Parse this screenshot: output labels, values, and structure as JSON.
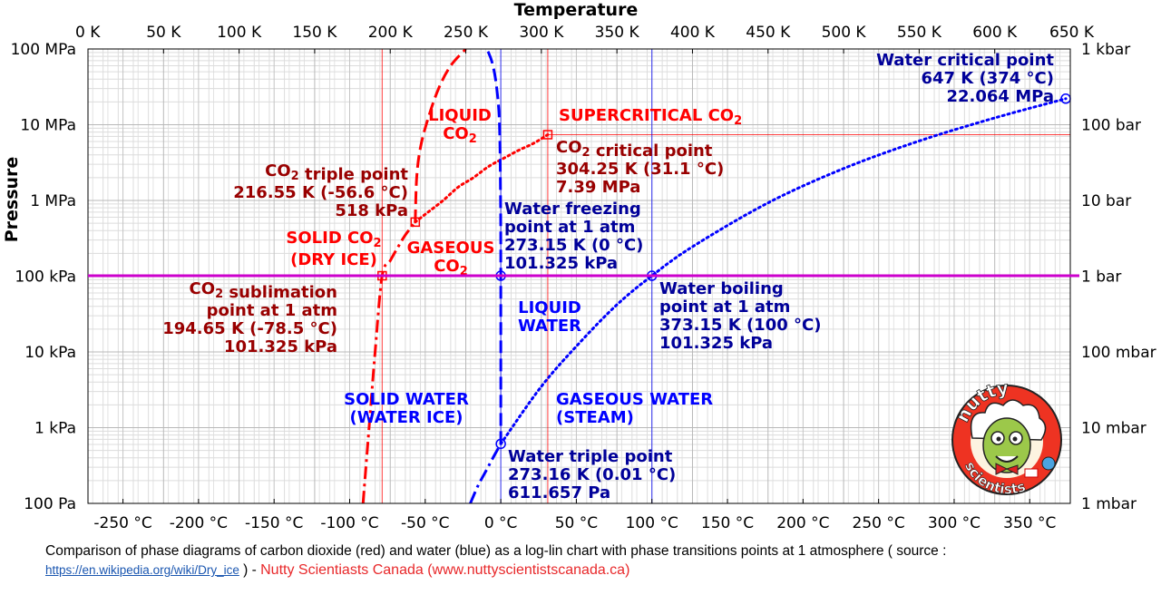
{
  "chart_data": {
    "type": "line",
    "title": "Temperature",
    "xlabel": "Temperature",
    "ylabel": "Pressure",
    "x_scale": "linear",
    "y_scale": "log",
    "xlim_kelvin": [
      0,
      650
    ],
    "xlim_celsius": [
      -273.15,
      376.85
    ],
    "ylim_pa": [
      100,
      100000000
    ],
    "grid": true,
    "top_ticks": [
      "0 K",
      "50 K",
      "100 K",
      "150 K",
      "200 K",
      "250 K",
      "300 K",
      "350 K",
      "400 K",
      "450 K",
      "500 K",
      "550 K",
      "600 K",
      "650 K"
    ],
    "top_tick_values": [
      0,
      50,
      100,
      150,
      200,
      250,
      300,
      350,
      400,
      450,
      500,
      550,
      600,
      650
    ],
    "bottom_ticks": [
      "-250 °C",
      "-200 °C",
      "-150 °C",
      "-100 °C",
      "-50 °C",
      "0 °C",
      "50 °C",
      "100 °C",
      "150 °C",
      "200 °C",
      "250 °C",
      "300 °C",
      "350 °C"
    ],
    "bottom_tick_values": [
      -250,
      -200,
      -150,
      -100,
      -50,
      0,
      50,
      100,
      150,
      200,
      250,
      300,
      350
    ],
    "left_ticks": [
      "100 MPa",
      "10 MPa",
      "1 MPa",
      "100 kPa",
      "10 kPa",
      "1 kPa",
      "100 Pa"
    ],
    "left_tick_values": [
      100000000,
      10000000,
      1000000,
      100000,
      10000,
      1000,
      100
    ],
    "right_ticks": [
      "1 kbar",
      "100 bar",
      "10 bar",
      "1 bar",
      "100 mbar",
      "10 mbar",
      "1 mbar"
    ],
    "one_atm_pa": 101325,
    "series": [
      {
        "role": "co2-sublimation",
        "color": "#ff0000",
        "dash": "dashdot",
        "x": [
          182,
          186,
          190,
          194.65,
          200,
          205,
          210,
          216.55
        ],
        "y": [
          100,
          1000,
          10000,
          101325,
          160000,
          240000,
          350000,
          518000
        ]
      },
      {
        "role": "co2-melting",
        "color": "#ff0000",
        "dash": "dashed",
        "x": [
          216.55,
          217.5,
          220,
          225,
          232,
          240,
          250
        ],
        "y": [
          518000,
          2000000,
          5000000,
          12000000,
          30000000,
          60000000,
          100000000
        ]
      },
      {
        "role": "co2-boiling",
        "color": "#ff0000",
        "dash": "dotted",
        "x": [
          216.55,
          225,
          235,
          245,
          255,
          265,
          275,
          285,
          295,
          304.25
        ],
        "y": [
          518000,
          700000,
          1000000,
          1500000,
          2000000,
          2800000,
          3600000,
          4600000,
          5700000,
          7390000
        ]
      },
      {
        "role": "water-sublimation",
        "color": "#0000ff",
        "dash": "dashdot",
        "x": [
          253,
          258,
          263,
          268,
          273.16
        ],
        "y": [
          100,
          170,
          260,
          400,
          611.657
        ]
      },
      {
        "role": "water-melting",
        "color": "#0000ff",
        "dash": "dashed",
        "x": [
          273.16,
          273.15,
          273.0,
          272.3,
          270.5,
          268,
          265,
          263
        ],
        "y": [
          611.657,
          101325,
          1000000,
          10000000,
          30000000,
          60000000,
          90000000,
          100000000
        ]
      },
      {
        "role": "water-boiling",
        "color": "#0000ff",
        "dash": "dotted",
        "x": [
          273.16,
          300,
          325,
          350,
          373.15,
          400,
          450,
          500,
          550,
          600,
          647
        ],
        "y": [
          611.657,
          3500,
          13000,
          42000,
          101325,
          245000,
          930000,
          2640000,
          6100000,
          12300000,
          22064000
        ]
      }
    ],
    "points": [
      {
        "role": "co2-triple",
        "color": "#ff0000",
        "marker": "square",
        "x": 216.55,
        "y": 518000
      },
      {
        "role": "co2-critical",
        "color": "#ff0000",
        "marker": "square",
        "x": 304.25,
        "y": 7390000
      },
      {
        "role": "co2-sublimation-1atm",
        "color": "#ff0000",
        "marker": "square",
        "x": 194.65,
        "y": 101325
      },
      {
        "role": "water-triple",
        "color": "#0000ff",
        "marker": "circle",
        "x": 273.16,
        "y": 611.657
      },
      {
        "role": "water-freezing-1atm",
        "color": "#0000ff",
        "marker": "circle",
        "x": 273.15,
        "y": 101325
      },
      {
        "role": "water-boiling-1atm",
        "color": "#0000ff",
        "marker": "circle",
        "x": 373.15,
        "y": 101325
      },
      {
        "role": "water-critical",
        "color": "#0000ff",
        "marker": "circle",
        "x": 647,
        "y": 22064000
      }
    ],
    "guide_lines": [
      {
        "color": "#ff0000",
        "orientation": "vertical",
        "x": 194.65
      },
      {
        "color": "#ff0000",
        "orientation": "vertical",
        "x": 304.25
      },
      {
        "color": "#ff0000",
        "orientation": "horizontal",
        "y": 7390000
      },
      {
        "color": "#0000ff",
        "orientation": "vertical",
        "x": 273.15
      },
      {
        "color": "#0000ff",
        "orientation": "vertical",
        "x": 373.15
      },
      {
        "color": "#cc00cc",
        "orientation": "horizontal",
        "y": 101325
      }
    ],
    "annotations": [
      {
        "color": "#ff0000",
        "align": "middle",
        "x": 507,
        "y": 133,
        "lines": [
          "LIQUID",
          "CO2"
        ],
        "sub": true
      },
      {
        "color": "#ff0000",
        "align": "start",
        "x": 616,
        "y": 133,
        "lines": [
          "SUPERCRITICAL CO2"
        ],
        "sub": true
      },
      {
        "color": "#990000",
        "align": "start",
        "x": 613,
        "y": 168,
        "lines": [
          "CO2 critical point",
          "304.25 K (31.1 °C)",
          "7.39 MPa"
        ],
        "sub": true
      },
      {
        "color": "#990000",
        "align": "end",
        "x": 450,
        "y": 194,
        "lines": [
          "CO2 triple point",
          "216.55 K (-56.6 °C)",
          "518 kPa"
        ],
        "sub": true
      },
      {
        "color": "#ff0000",
        "align": "middle",
        "x": 368,
        "y": 268,
        "lines": [
          "SOLID CO2",
          "(DRY ICE)"
        ],
        "sub": true
      },
      {
        "color": "#ff0000",
        "align": "middle",
        "x": 497,
        "y": 279,
        "lines": [
          "GASEOUS",
          "CO2"
        ],
        "sub": true
      },
      {
        "color": "#990000",
        "align": "end",
        "x": 372,
        "y": 324,
        "lines": [
          "CO2 sublimation",
          "point at 1 atm",
          "194.65 K (-78.5 °C)",
          "101.325 kPa"
        ],
        "sub": true
      },
      {
        "color": "#000099",
        "align": "start",
        "x": 556,
        "y": 236,
        "lines": [
          "Water freezing",
          "point at 1 atm",
          "273.15 K (0 °C)",
          "101.325 kPa"
        ],
        "sub": false
      },
      {
        "color": "#0000ff",
        "align": "middle",
        "x": 606,
        "y": 345,
        "lines": [
          "LIQUID",
          "WATER"
        ],
        "sub": false
      },
      {
        "color": "#000099",
        "align": "start",
        "x": 727,
        "y": 324,
        "lines": [
          "Water boiling",
          "point at 1 atm",
          "373.15 K (100 °C)",
          "101.325 kPa"
        ],
        "sub": false
      },
      {
        "color": "#000099",
        "align": "end",
        "x": 1162,
        "y": 72,
        "lines": [
          "Water critical point",
          "647 K (374 °C)",
          "22.064 MPa"
        ],
        "sub": false
      },
      {
        "color": "#0000ff",
        "align": "middle",
        "x": 448,
        "y": 446,
        "lines": [
          "SOLID WATER",
          "(WATER ICE)"
        ],
        "sub": false
      },
      {
        "color": "#0000ff",
        "align": "start",
        "x": 613,
        "y": 446,
        "lines": [
          "GASEOUS WATER",
          "(STEAM)"
        ],
        "sub": false
      },
      {
        "color": "#000099",
        "align": "start",
        "x": 560,
        "y": 509,
        "lines": [
          "Water triple point",
          "273.16 K (0.01 °C)",
          "611.657 Pa"
        ],
        "sub": false
      }
    ]
  },
  "caption": {
    "text": "Comparison of phase diagrams of carbon dioxide (red) and water (blue) as a log-lin chart with phase transitions points at 1 atmosphere ( source :",
    "link": "https://en.wikipedia.org/wiki/Dry_ice",
    "close": ") -",
    "credit": "Nutty Scientiasts Canada (www.nuttyscientistscanada.ca)"
  },
  "logo": {
    "word1": "nutty",
    "word2": "scientists",
    "colors": {
      "ring": "#ee3322",
      "face": "#9cc84a",
      "hair": "#ffffff",
      "outline": "#222222"
    }
  }
}
